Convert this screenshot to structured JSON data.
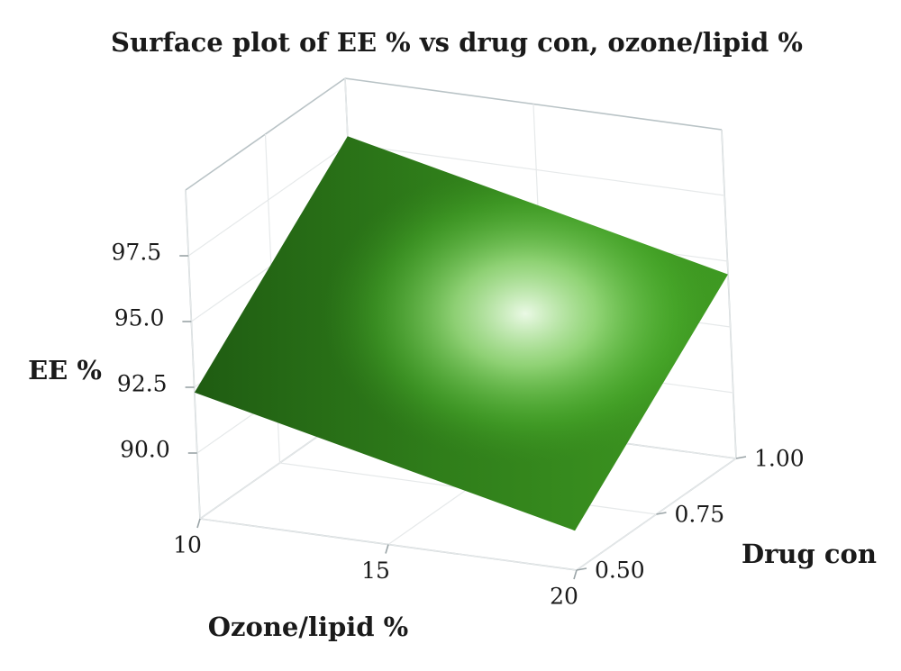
{
  "chart_data": {
    "type": "surface",
    "title": "Surface plot of EE % vs drug con, ozone/lipid %",
    "xlabel": "Ozone/lipid %",
    "ylabel": "Drug con",
    "zlabel": "EE %",
    "x_ticks": [
      "10",
      "15",
      "20"
    ],
    "y_ticks": [
      "0.50",
      "0.75",
      "1.00"
    ],
    "z_ticks": [
      "90.0",
      "92.5",
      "95.0",
      "97.5"
    ],
    "x_range": [
      10,
      20
    ],
    "y_range": [
      0.5,
      1.0
    ],
    "z_range": [
      87.5,
      100
    ],
    "surface": {
      "x": [
        10,
        20
      ],
      "y": [
        0.5,
        1.0
      ],
      "z": [
        [
          92.3,
          89.0
        ],
        [
          97.8,
          94.5
        ]
      ]
    },
    "colors": {
      "surface_dark": "#1f5c12",
      "surface_mid": "#3f9a22",
      "surface_highlight": "#f4fff0",
      "frame": "#b9c3c6",
      "grid": "#e6e9ea"
    },
    "grid": true
  }
}
